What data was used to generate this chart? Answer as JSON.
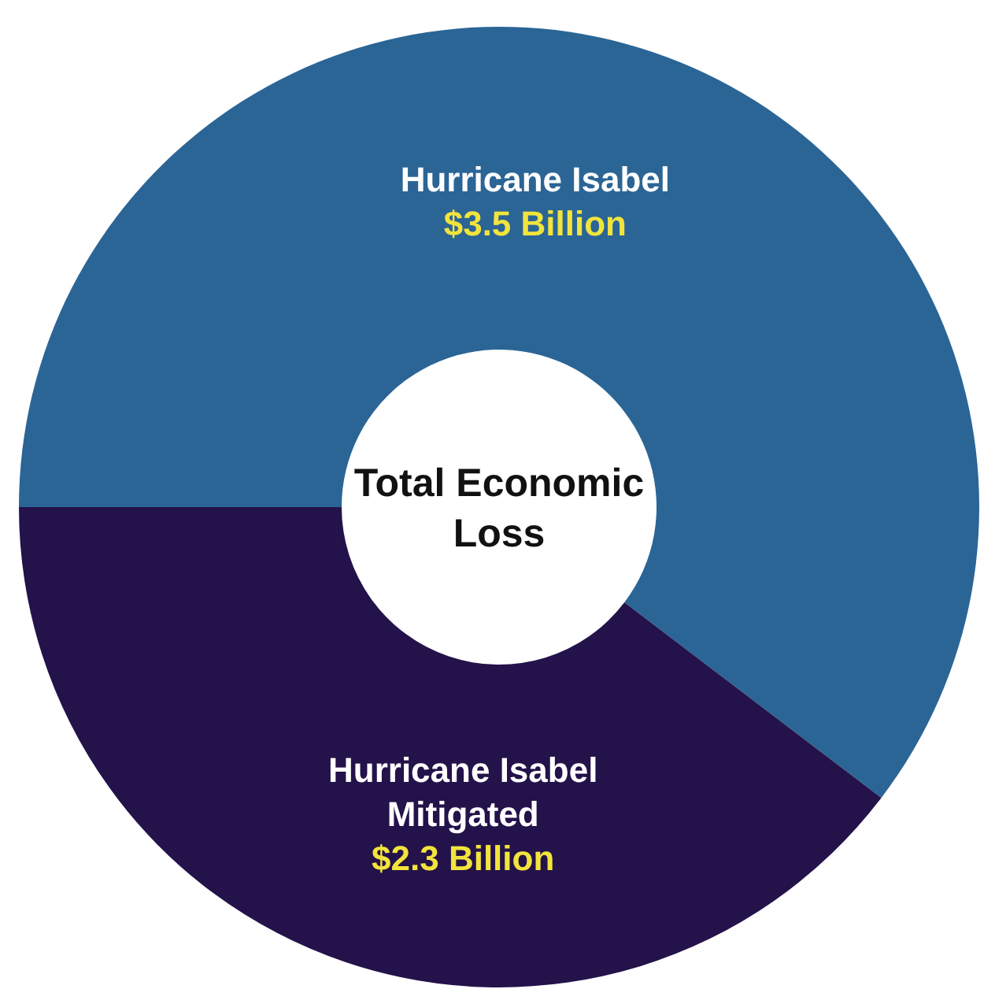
{
  "chart_data": {
    "type": "donut",
    "title": "Total Economic Loss",
    "categories": [
      "Hurricane Isabel",
      "Hurricane Isabel Mitigated"
    ],
    "values": [
      3.5,
      2.3
    ],
    "colors": [
      "#2b6596",
      "#24124a"
    ],
    "value_labels": [
      "$3.5 Billion",
      "$2.3 Billion"
    ]
  }
}
